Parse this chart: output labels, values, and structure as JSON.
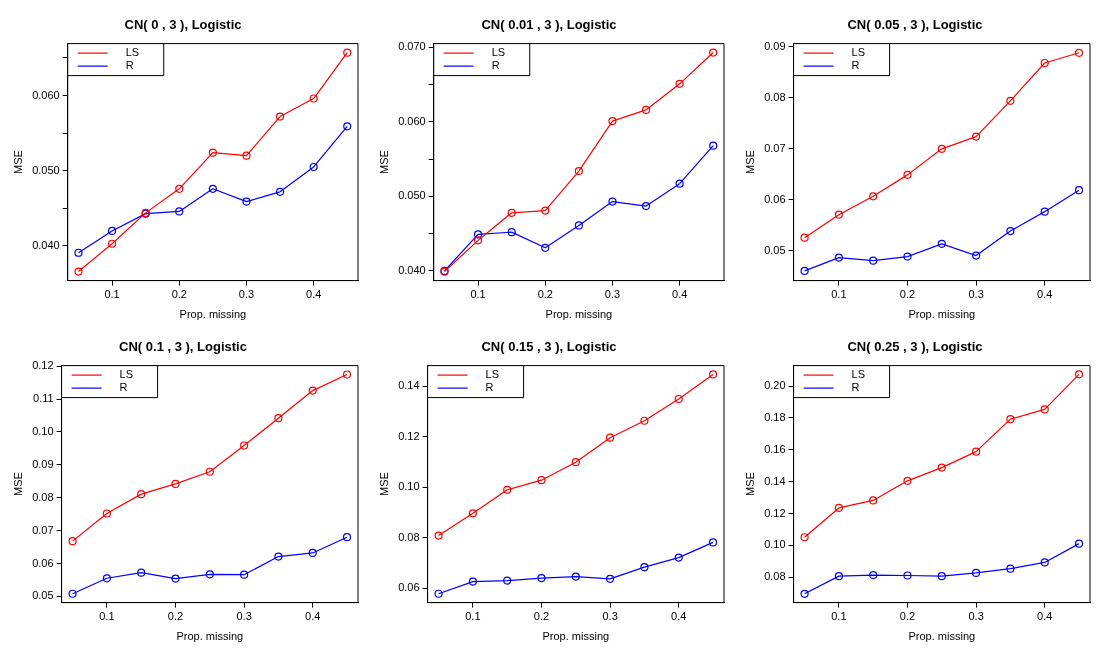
{
  "chart_data": [
    {
      "type": "line",
      "title": "CN( 0 , 3 ), Logistic",
      "xlabel": "Prop. missing",
      "ylabel": "MSE",
      "x": [
        0.05,
        0.1,
        0.15,
        0.2,
        0.25,
        0.3,
        0.35,
        0.4,
        0.45
      ],
      "xlim": [
        0.034,
        0.466
      ],
      "xticks": [
        0.1,
        0.2,
        0.3,
        0.4
      ],
      "ylim": [
        0.0354,
        0.0669
      ],
      "yticks": [
        {
          "value": 0.04,
          "label": "0.040"
        },
        {
          "value": 0.045,
          "label": null
        },
        {
          "value": 0.05,
          "label": "0.050"
        },
        {
          "value": 0.055,
          "label": null
        },
        {
          "value": 0.06,
          "label": "0.060"
        },
        {
          "value": 0.065,
          "label": null
        }
      ],
      "legend": "top left",
      "marker": "circle",
      "line_style": "solid",
      "grid": false,
      "series": [
        {
          "name": "LS",
          "color": "#ff0000",
          "values": [
            0.0366,
            0.0403,
            0.0444,
            0.0476,
            0.0524,
            0.052,
            0.0572,
            0.0596,
            0.0657
          ]
        },
        {
          "name": "R",
          "color": "#0000ff",
          "values": [
            0.0391,
            0.042,
            0.0443,
            0.0446,
            0.0476,
            0.0459,
            0.0472,
            0.0505,
            0.0559
          ]
        }
      ]
    },
    {
      "type": "line",
      "title": "CN( 0.01 , 3 ), Logistic",
      "xlabel": "Prop. missing",
      "ylabel": "MSE",
      "x": [
        0.05,
        0.1,
        0.15,
        0.2,
        0.25,
        0.3,
        0.35,
        0.4,
        0.45
      ],
      "xlim": [
        0.034,
        0.466
      ],
      "xticks": [
        0.1,
        0.2,
        0.3,
        0.4
      ],
      "ylim": [
        0.0387,
        0.0705
      ],
      "yticks": [
        {
          "value": 0.04,
          "label": "0.040"
        },
        {
          "value": 0.045,
          "label": null
        },
        {
          "value": 0.05,
          "label": "0.050"
        },
        {
          "value": 0.055,
          "label": null
        },
        {
          "value": 0.06,
          "label": "0.060"
        },
        {
          "value": 0.065,
          "label": null
        },
        {
          "value": 0.07,
          "label": "0.070"
        }
      ],
      "legend": "top left",
      "marker": "circle",
      "line_style": "solid",
      "grid": false,
      "series": [
        {
          "name": "LS",
          "color": "#ff0000",
          "values": [
            0.0399,
            0.0441,
            0.0478,
            0.0481,
            0.0534,
            0.0601,
            0.0616,
            0.0651,
            0.0693
          ]
        },
        {
          "name": "R",
          "color": "#0000ff",
          "values": [
            0.04,
            0.0449,
            0.0452,
            0.0431,
            0.0461,
            0.0493,
            0.0487,
            0.0517,
            0.0568
          ]
        }
      ]
    },
    {
      "type": "line",
      "title": "CN( 0.05 , 3 ), Logistic",
      "xlabel": "Prop. missing",
      "ylabel": "MSE",
      "x": [
        0.05,
        0.1,
        0.15,
        0.2,
        0.25,
        0.3,
        0.35,
        0.4,
        0.45
      ],
      "xlim": [
        0.034,
        0.466
      ],
      "xticks": [
        0.1,
        0.2,
        0.3,
        0.4
      ],
      "ylim": [
        0.0442,
        0.0906
      ],
      "yticks": [
        0.05,
        0.06,
        0.07,
        0.08,
        0.09
      ],
      "legend": "top left",
      "marker": "circle",
      "line_style": "solid",
      "grid": false,
      "series": [
        {
          "name": "LS",
          "color": "#ff0000",
          "values": [
            0.0526,
            0.0571,
            0.0607,
            0.0649,
            0.07,
            0.0724,
            0.0794,
            0.0868,
            0.0888
          ]
        },
        {
          "name": "R",
          "color": "#0000ff",
          "values": [
            0.0461,
            0.0487,
            0.0481,
            0.0489,
            0.0514,
            0.0491,
            0.0539,
            0.0577,
            0.0619
          ]
        }
      ]
    },
    {
      "type": "line",
      "title": "CN( 0.1 , 3 ), Logistic",
      "xlabel": "Prop. missing",
      "ylabel": "MSE",
      "x": [
        0.05,
        0.1,
        0.15,
        0.2,
        0.25,
        0.3,
        0.35,
        0.4,
        0.45
      ],
      "xlim": [
        0.034,
        0.466
      ],
      "xticks": [
        0.1,
        0.2,
        0.3,
        0.4
      ],
      "ylim": [
        0.0481,
        0.1202
      ],
      "yticks": [
        0.05,
        0.06,
        0.07,
        0.08,
        0.09,
        {
          "value": 0.1,
          "label": "0.10"
        },
        0.11,
        0.12
      ],
      "legend": "top left",
      "marker": "circle",
      "line_style": "solid",
      "grid": false,
      "series": [
        {
          "name": "LS",
          "color": "#ff0000",
          "values": [
            0.0668,
            0.0752,
            0.0811,
            0.0842,
            0.0879,
            0.0959,
            0.1042,
            0.1126,
            0.1175
          ]
        },
        {
          "name": "R",
          "color": "#0000ff",
          "values": [
            0.0508,
            0.0555,
            0.0572,
            0.0554,
            0.0567,
            0.0566,
            0.0621,
            0.0632,
            0.068
          ]
        }
      ]
    },
    {
      "type": "line",
      "title": "CN( 0.15 , 3 ), Logistic",
      "xlabel": "Prop. missing",
      "ylabel": "MSE",
      "x": [
        0.05,
        0.1,
        0.15,
        0.2,
        0.25,
        0.3,
        0.35,
        0.4,
        0.45
      ],
      "xlim": [
        0.034,
        0.466
      ],
      "xticks": [
        0.1,
        0.2,
        0.3,
        0.4
      ],
      "ylim": [
        0.0544,
        0.1481
      ],
      "yticks": [
        0.06,
        0.08,
        {
          "value": 0.1,
          "label": "0.10"
        },
        0.12,
        0.14
      ],
      "legend": "top left",
      "marker": "circle",
      "line_style": "solid",
      "grid": false,
      "series": [
        {
          "name": "LS",
          "color": "#ff0000",
          "values": [
            0.0809,
            0.0897,
            0.099,
            0.1028,
            0.1099,
            0.1196,
            0.1263,
            0.1349,
            0.1446
          ]
        },
        {
          "name": "R",
          "color": "#0000ff",
          "values": [
            0.0579,
            0.0627,
            0.0631,
            0.0641,
            0.0647,
            0.0638,
            0.0684,
            0.0722,
            0.0782
          ]
        }
      ]
    },
    {
      "type": "line",
      "title": "CN( 0.25 , 3 ), Logistic",
      "xlabel": "Prop. missing",
      "ylabel": "MSE",
      "x": [
        0.05,
        0.1,
        0.15,
        0.2,
        0.25,
        0.3,
        0.35,
        0.4,
        0.45
      ],
      "xlim": [
        0.034,
        0.466
      ],
      "xticks": [
        0.1,
        0.2,
        0.3,
        0.4
      ],
      "ylim": [
        0.0641,
        0.2128
      ],
      "yticks": [
        0.08,
        {
          "value": 0.1,
          "label": "0.10"
        },
        0.12,
        0.14,
        0.16,
        0.18,
        {
          "value": 0.2,
          "label": "0.20"
        }
      ],
      "legend": "top left",
      "marker": "circle",
      "line_style": "solid",
      "grid": false,
      "series": [
        {
          "name": "LS",
          "color": "#ff0000",
          "values": [
            0.1051,
            0.1235,
            0.1282,
            0.1405,
            0.1488,
            0.1588,
            0.1792,
            0.1853,
            0.2073
          ]
        },
        {
          "name": "R",
          "color": "#0000ff",
          "values": [
            0.0696,
            0.0807,
            0.0814,
            0.0811,
            0.0807,
            0.0827,
            0.0854,
            0.0893,
            0.1011
          ]
        }
      ]
    }
  ]
}
